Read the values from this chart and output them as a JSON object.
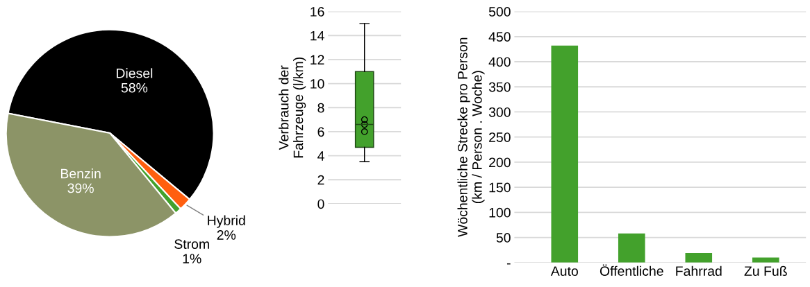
{
  "chart_data": [
    {
      "type": "pie",
      "categories": [
        "Diesel",
        "Hybrid",
        "Strom",
        "Benzin"
      ],
      "values": [
        58,
        2,
        1,
        39
      ],
      "value_labels": [
        "58%",
        "2%",
        "1%",
        "39%"
      ],
      "colors": [
        "#000000",
        "#ff5f0f",
        "#43a12c",
        "#8c9467"
      ]
    },
    {
      "type": "box",
      "categories": [
        null
      ],
      "ylabel": "Verbrauch der\nFahrzeuge (l/km)",
      "color": "#43a12c",
      "boxes": [
        {
          "low": 3.5,
          "q1": 4.7,
          "median": 6.6,
          "q3": 11,
          "high": 15,
          "outliers": [
            7.0,
            6.6,
            6.0
          ]
        }
      ],
      "ylim": [
        0,
        16
      ],
      "yticks": [
        0,
        2,
        4,
        6,
        8,
        10,
        12,
        14,
        16
      ],
      "grid": "y"
    },
    {
      "type": "bar",
      "categories": [
        "Auto",
        "Öffentliche",
        "Fahrrad",
        "Zu Fuß"
      ],
      "values": [
        432,
        58,
        19,
        10
      ],
      "color": "#43a12c",
      "ylabel": "Wöchentliche Strecke pro Person\n(km / Person . Woche)",
      "ylim": [
        0,
        500
      ],
      "yticks": [
        {
          "value": 0,
          "label": "-"
        },
        50,
        100,
        150,
        200,
        250,
        300,
        350,
        400,
        450,
        500
      ],
      "grid": "y"
    }
  ]
}
